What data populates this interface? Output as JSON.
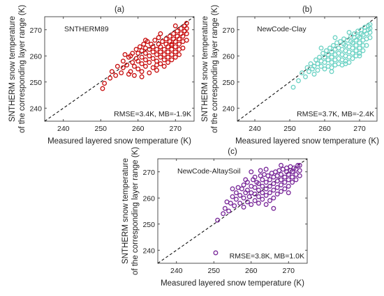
{
  "chart_data": [
    {
      "type": "scatter",
      "panel_label": "(a)",
      "model_label": "SNTHERM89",
      "stats_label": "RMSE=3.4K, MB=-1.9K",
      "xlabel": "Measured layered snow temperature (K)",
      "ylabel": [
        "SNTHERM snow temperature",
        "of the corresponding layer range (K)"
      ],
      "xlim": [
        235,
        275
      ],
      "ylim": [
        235,
        275
      ],
      "xticks": [
        240,
        250,
        260,
        270
      ],
      "yticks": [
        240,
        250,
        260,
        270
      ],
      "one_to_one_line": true,
      "marker": "open circle",
      "color": "#c81010",
      "points": [
        [
          250.5,
          247.5
        ],
        [
          251,
          249.5
        ],
        [
          252.5,
          251.5
        ],
        [
          253,
          254
        ],
        [
          254,
          252.5
        ],
        [
          254.5,
          256
        ],
        [
          255.5,
          253.5
        ],
        [
          256,
          255.5
        ],
        [
          256,
          258
        ],
        [
          257,
          256.5
        ],
        [
          257.5,
          253
        ],
        [
          257.5,
          259.5
        ],
        [
          258,
          254
        ],
        [
          258.5,
          257.5
        ],
        [
          258.5,
          261
        ],
        [
          259,
          252.5
        ],
        [
          259,
          256
        ],
        [
          259.5,
          259
        ],
        [
          259.5,
          262.5
        ],
        [
          260,
          255
        ],
        [
          260,
          258
        ],
        [
          260,
          261
        ],
        [
          260.5,
          263.5
        ],
        [
          261,
          254
        ],
        [
          261,
          257
        ],
        [
          261,
          259.5
        ],
        [
          261,
          262
        ],
        [
          261.5,
          264.5
        ],
        [
          262,
          256
        ],
        [
          262,
          258.5
        ],
        [
          262,
          261
        ],
        [
          262,
          263
        ],
        [
          262.5,
          265.5
        ],
        [
          263,
          253.5
        ],
        [
          263,
          257.5
        ],
        [
          263,
          260
        ],
        [
          263,
          262.5
        ],
        [
          263.5,
          264.5
        ],
        [
          264,
          255.5
        ],
        [
          264,
          259
        ],
        [
          264,
          261.5
        ],
        [
          264,
          263.5
        ],
        [
          264.5,
          266
        ],
        [
          265,
          254.5
        ],
        [
          265,
          258
        ],
        [
          265,
          260.5
        ],
        [
          265,
          262.5
        ],
        [
          265.5,
          264.5
        ],
        [
          265.5,
          267
        ],
        [
          266,
          257
        ],
        [
          266,
          259.5
        ],
        [
          266,
          261.5
        ],
        [
          266,
          263.5
        ],
        [
          266.5,
          265.5
        ],
        [
          267,
          256
        ],
        [
          267,
          258.5
        ],
        [
          267,
          260.5
        ],
        [
          267,
          262.5
        ],
        [
          267.5,
          264.5
        ],
        [
          267.5,
          266.5
        ],
        [
          268,
          257.5
        ],
        [
          268,
          259.5
        ],
        [
          268,
          261.5
        ],
        [
          268,
          263.5
        ],
        [
          268.5,
          265.5
        ],
        [
          268.5,
          267.5
        ],
        [
          269,
          258.5
        ],
        [
          269,
          260.5
        ],
        [
          269,
          262.5
        ],
        [
          269,
          264.5
        ],
        [
          269.5,
          266.5
        ],
        [
          269.5,
          268.5
        ],
        [
          270,
          259.5
        ],
        [
          270,
          261.5
        ],
        [
          270,
          263.5
        ],
        [
          270,
          265.5
        ],
        [
          270.5,
          267.5
        ],
        [
          270.5,
          269.5
        ],
        [
          271,
          260.5
        ],
        [
          271,
          262.5
        ],
        [
          271,
          264.5
        ],
        [
          271,
          266.5
        ],
        [
          271.5,
          268.5
        ],
        [
          271.5,
          270.5
        ],
        [
          272,
          263
        ],
        [
          272,
          265.5
        ],
        [
          272,
          267.5
        ],
        [
          272.5,
          269.5
        ],
        [
          272.5,
          271.5
        ],
        [
          273,
          266
        ],
        [
          273,
          268.5
        ],
        [
          273,
          270.5
        ],
        [
          273,
          272.5
        ],
        [
          258,
          260
        ],
        [
          262,
          266
        ],
        [
          266,
          268.5
        ],
        [
          270,
          271.5
        ],
        [
          261,
          252
        ],
        [
          265,
          256.5
        ],
        [
          269,
          264
        ],
        [
          256.5,
          260.5
        ]
      ]
    },
    {
      "type": "scatter",
      "panel_label": "(b)",
      "model_label": "NewCode-Clay",
      "stats_label": "RMSE=3.7K, MB=-2.4K",
      "xlabel": "Measured layered snow temperature (K)",
      "ylabel": [
        "SNTHERM snow temperature",
        "of the corresponding layer range (K)"
      ],
      "xlim": [
        235,
        275
      ],
      "ylim": [
        235,
        275
      ],
      "xticks": [
        240,
        250,
        260,
        270
      ],
      "yticks": [
        240,
        250,
        260,
        270
      ],
      "one_to_one_line": true,
      "marker": "open circle",
      "color": "#6ed3c5",
      "points": [
        [
          251,
          248
        ],
        [
          252.5,
          250.5
        ],
        [
          253.5,
          253.5
        ],
        [
          254.5,
          252
        ],
        [
          255,
          255.5
        ],
        [
          255.5,
          254
        ],
        [
          256,
          257
        ],
        [
          256.5,
          255
        ],
        [
          257,
          256
        ],
        [
          257.5,
          258.5
        ],
        [
          258,
          254.5
        ],
        [
          258,
          257
        ],
        [
          258.5,
          259.5
        ],
        [
          259,
          256
        ],
        [
          259,
          258
        ],
        [
          259.5,
          261
        ],
        [
          260,
          255
        ],
        [
          260,
          257.5
        ],
        [
          260,
          259.5
        ],
        [
          260.5,
          262
        ],
        [
          261,
          256
        ],
        [
          261,
          258.5
        ],
        [
          261,
          260.5
        ],
        [
          261.5,
          263
        ],
        [
          262,
          255.5
        ],
        [
          262,
          257.5
        ],
        [
          262,
          259.5
        ],
        [
          262,
          261.5
        ],
        [
          262.5,
          264
        ],
        [
          263,
          256.5
        ],
        [
          263,
          258.5
        ],
        [
          263,
          260.5
        ],
        [
          263,
          262.5
        ],
        [
          263.5,
          265
        ],
        [
          264,
          257
        ],
        [
          264,
          259
        ],
        [
          264,
          261
        ],
        [
          264,
          263
        ],
        [
          264.5,
          265.5
        ],
        [
          265,
          256.5
        ],
        [
          265,
          258.5
        ],
        [
          265,
          260.5
        ],
        [
          265,
          262.5
        ],
        [
          265.5,
          264.5
        ],
        [
          265.5,
          266.5
        ],
        [
          266,
          258
        ],
        [
          266,
          260
        ],
        [
          266,
          262
        ],
        [
          266,
          264
        ],
        [
          266.5,
          266
        ],
        [
          267,
          257.5
        ],
        [
          267,
          259.5
        ],
        [
          267,
          261.5
        ],
        [
          267,
          263.5
        ],
        [
          267.5,
          265.5
        ],
        [
          267.5,
          267.5
        ],
        [
          268,
          259
        ],
        [
          268,
          261
        ],
        [
          268,
          263
        ],
        [
          268,
          265
        ],
        [
          268.5,
          267
        ],
        [
          268.5,
          268.5
        ],
        [
          269,
          260
        ],
        [
          269,
          262
        ],
        [
          269,
          264
        ],
        [
          269,
          266
        ],
        [
          269.5,
          267.5
        ],
        [
          269.5,
          269.5
        ],
        [
          270,
          261
        ],
        [
          270,
          263
        ],
        [
          270,
          265
        ],
        [
          270,
          267
        ],
        [
          270.5,
          268.5
        ],
        [
          270.5,
          270
        ],
        [
          271,
          262
        ],
        [
          271,
          264
        ],
        [
          271,
          266
        ],
        [
          271,
          268
        ],
        [
          271.5,
          269.5
        ],
        [
          271.5,
          271
        ],
        [
          272,
          264
        ],
        [
          272,
          266.5
        ],
        [
          272,
          268.5
        ],
        [
          272.5,
          270
        ],
        [
          272.5,
          271.5
        ],
        [
          273,
          267
        ],
        [
          273,
          269
        ],
        [
          273,
          270.5
        ],
        [
          273,
          272
        ],
        [
          259,
          263
        ],
        [
          263,
          267
        ],
        [
          267,
          269
        ],
        [
          262,
          254
        ],
        [
          266,
          257
        ],
        [
          270,
          260
        ],
        [
          257,
          253
        ]
      ]
    },
    {
      "type": "scatter",
      "panel_label": "(c)",
      "model_label": "NewCode-AltaySoil",
      "stats_label": "RMSE=3.8K, MB=1.0K",
      "xlabel": "Measured layered snow temperature (K)",
      "ylabel": [
        "SNTHERM snow temperature",
        "of the corresponding layer range (K)"
      ],
      "xlim": [
        235,
        275
      ],
      "ylim": [
        235,
        275
      ],
      "xticks": [
        240,
        250,
        260,
        270
      ],
      "yticks": [
        240,
        250,
        260,
        270
      ],
      "one_to_one_line": true,
      "marker": "open circle",
      "color": "#7a2a9a",
      "points": [
        [
          250.5,
          239
        ],
        [
          251,
          251.5
        ],
        [
          252.5,
          254
        ],
        [
          253,
          256
        ],
        [
          254,
          255
        ],
        [
          254.5,
          258
        ],
        [
          255,
          260.5
        ],
        [
          255.5,
          257
        ],
        [
          256,
          259.5
        ],
        [
          256,
          262
        ],
        [
          256.5,
          264
        ],
        [
          257,
          258
        ],
        [
          257,
          261
        ],
        [
          257.5,
          263.5
        ],
        [
          258,
          256.5
        ],
        [
          258,
          260
        ],
        [
          258,
          265
        ],
        [
          258.5,
          262
        ],
        [
          259,
          258.5
        ],
        [
          259,
          263
        ],
        [
          259,
          266
        ],
        [
          259.5,
          260.5
        ],
        [
          260,
          257.5
        ],
        [
          260,
          262
        ],
        [
          260,
          264.5
        ],
        [
          260.5,
          267
        ],
        [
          261,
          259
        ],
        [
          261,
          261.5
        ],
        [
          261,
          264
        ],
        [
          261,
          268
        ],
        [
          261.5,
          266
        ],
        [
          262,
          258
        ],
        [
          262,
          260.5
        ],
        [
          262,
          263
        ],
        [
          262,
          265.5
        ],
        [
          262.5,
          268.5
        ],
        [
          263,
          259.5
        ],
        [
          263,
          262
        ],
        [
          263,
          264.5
        ],
        [
          263,
          267
        ],
        [
          263.5,
          269
        ],
        [
          264,
          257.5
        ],
        [
          264,
          261
        ],
        [
          264,
          263.5
        ],
        [
          264,
          266
        ],
        [
          264.5,
          268.5
        ],
        [
          265,
          259
        ],
        [
          265,
          262
        ],
        [
          265,
          264.5
        ],
        [
          265,
          267
        ],
        [
          265.5,
          269.5
        ],
        [
          266,
          260
        ],
        [
          266,
          263
        ],
        [
          266,
          265.5
        ],
        [
          266,
          268
        ],
        [
          266.5,
          270
        ],
        [
          267,
          261.5
        ],
        [
          267,
          264
        ],
        [
          267,
          266.5
        ],
        [
          267,
          268.5
        ],
        [
          267.5,
          270.5
        ],
        [
          268,
          262.5
        ],
        [
          268,
          265
        ],
        [
          268,
          267
        ],
        [
          268,
          269
        ],
        [
          268.5,
          271
        ],
        [
          269,
          263.5
        ],
        [
          269,
          266
        ],
        [
          269,
          268
        ],
        [
          269.5,
          270
        ],
        [
          269.5,
          271.5
        ],
        [
          270,
          264.5
        ],
        [
          270,
          267
        ],
        [
          270,
          269
        ],
        [
          270.5,
          270.5
        ],
        [
          270.5,
          272
        ],
        [
          271,
          266
        ],
        [
          271,
          268
        ],
        [
          271,
          270
        ],
        [
          271.5,
          271.5
        ],
        [
          272,
          267
        ],
        [
          272,
          269
        ],
        [
          272,
          271
        ],
        [
          272.5,
          272.5
        ],
        [
          273,
          268.5
        ],
        [
          273,
          270.5
        ],
        [
          273,
          272.5
        ],
        [
          260,
          270
        ],
        [
          264,
          271
        ],
        [
          268,
          272.5
        ],
        [
          258.5,
          267
        ],
        [
          262.5,
          270.5
        ],
        [
          266,
          256
        ],
        [
          270,
          262
        ],
        [
          255,
          263.5
        ],
        [
          253.5,
          258.5
        ]
      ]
    }
  ]
}
